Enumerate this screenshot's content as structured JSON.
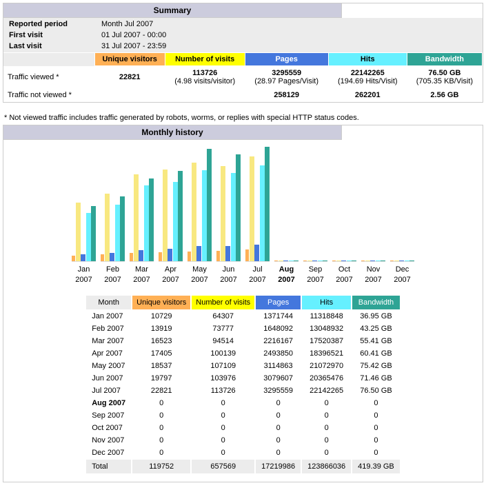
{
  "colors": {
    "unique_visitors": "#ffb055",
    "number_of_visits": "#f8e880",
    "number_of_visits_header": "#ffff00",
    "pages": "#4477dd",
    "hits": "#66f0ff",
    "bandwidth": "#2ea495",
    "header_bg": "#ccccdd",
    "panel_bg": "#ececec"
  },
  "summary": {
    "title": "Summary",
    "reported_period_label": "Reported period",
    "reported_period_value": "Month Jul 2007",
    "first_visit_label": "First visit",
    "first_visit_value": "01 Jul 2007 - 00:00",
    "last_visit_label": "Last visit",
    "last_visit_value": "31 Jul 2007 - 23:59",
    "cols": {
      "unique_visitors": "Unique visitors",
      "number_of_visits": "Number of visits",
      "pages": "Pages",
      "hits": "Hits",
      "bandwidth": "Bandwidth"
    },
    "viewed": {
      "label": "Traffic viewed *",
      "unique_visitors": "22821",
      "number_of_visits": "113726",
      "number_of_visits_sub": "(4.98 visits/visitor)",
      "pages": "3295559",
      "pages_sub": "(28.97 Pages/Visit)",
      "hits": "22142265",
      "hits_sub": "(194.69 Hits/Visit)",
      "bandwidth": "76.50 GB",
      "bandwidth_sub": "(705.35 KB/Visit)"
    },
    "not_viewed": {
      "label": "Traffic not viewed *",
      "pages": "258129",
      "hits": "262201",
      "bandwidth": "2.56 GB"
    },
    "footnote": "* Not viewed traffic includes traffic generated by robots, worms, or replies with special HTTP status codes."
  },
  "monthly": {
    "title": "Monthly history",
    "chart_max_height": 180,
    "months": [
      {
        "label": "Jan",
        "year": "2007",
        "bold": false,
        "uv": 10729,
        "nv": 64307,
        "pages": 1371744,
        "hits": 11318848,
        "bw": "36.95 GB",
        "buv": 8,
        "bnv": 85,
        "bpg": 10,
        "bhi": 70,
        "bbw": 80
      },
      {
        "label": "Feb",
        "year": "2007",
        "bold": false,
        "uv": 13919,
        "nv": 73777,
        "pages": 1648092,
        "hits": 13048932,
        "bw": "43.25 GB",
        "buv": 10,
        "bnv": 98,
        "bpg": 12,
        "bhi": 82,
        "bbw": 94
      },
      {
        "label": "Mar",
        "year": "2007",
        "bold": false,
        "uv": 16523,
        "nv": 94514,
        "pages": 2216167,
        "hits": 17520387,
        "bw": "55.41 GB",
        "buv": 12,
        "bnv": 126,
        "bpg": 16,
        "bhi": 110,
        "bbw": 120
      },
      {
        "label": "Apr",
        "year": "2007",
        "bold": false,
        "uv": 17405,
        "nv": 100139,
        "pages": 2493850,
        "hits": 18396521,
        "bw": "60.41 GB",
        "buv": 13,
        "bnv": 133,
        "bpg": 18,
        "bhi": 115,
        "bbw": 131
      },
      {
        "label": "May",
        "year": "2007",
        "bold": false,
        "uv": 18537,
        "nv": 107109,
        "pages": 3114863,
        "hits": 21072970,
        "bw": "75.42 GB",
        "buv": 14,
        "bnv": 143,
        "bpg": 22,
        "bhi": 132,
        "bbw": 163
      },
      {
        "label": "Jun",
        "year": "2007",
        "bold": false,
        "uv": 19797,
        "nv": 103976,
        "pages": 3079607,
        "hits": 20365476,
        "bw": "71.46 GB",
        "buv": 15,
        "bnv": 138,
        "bpg": 22,
        "bhi": 128,
        "bbw": 155
      },
      {
        "label": "Jul",
        "year": "2007",
        "bold": false,
        "uv": 22821,
        "nv": 113726,
        "pages": 3295559,
        "hits": 22142265,
        "bw": "76.50 GB",
        "buv": 17,
        "bnv": 152,
        "bpg": 24,
        "bhi": 139,
        "bbw": 166
      },
      {
        "label": "Aug",
        "year": "2007",
        "bold": true,
        "uv": 0,
        "nv": 0,
        "pages": 0,
        "hits": 0,
        "bw": "0",
        "buv": 0,
        "bnv": 0,
        "bpg": 0,
        "bhi": 0,
        "bbw": 0
      },
      {
        "label": "Sep",
        "year": "2007",
        "bold": false,
        "uv": 0,
        "nv": 0,
        "pages": 0,
        "hits": 0,
        "bw": "0",
        "buv": 0,
        "bnv": 0,
        "bpg": 0,
        "bhi": 0,
        "bbw": 0
      },
      {
        "label": "Oct",
        "year": "2007",
        "bold": false,
        "uv": 0,
        "nv": 0,
        "pages": 0,
        "hits": 0,
        "bw": "0",
        "buv": 0,
        "bnv": 0,
        "bpg": 0,
        "bhi": 0,
        "bbw": 0
      },
      {
        "label": "Nov",
        "year": "2007",
        "bold": false,
        "uv": 0,
        "nv": 0,
        "pages": 0,
        "hits": 0,
        "bw": "0",
        "buv": 0,
        "bnv": 0,
        "bpg": 0,
        "bhi": 0,
        "bbw": 0
      },
      {
        "label": "Dec",
        "year": "2007",
        "bold": false,
        "uv": 0,
        "nv": 0,
        "pages": 0,
        "hits": 0,
        "bw": "0",
        "buv": 0,
        "bnv": 0,
        "bpg": 0,
        "bhi": 0,
        "bbw": 0
      }
    ],
    "table_cols": {
      "month": "Month",
      "uv": "Unique visitors",
      "nv": "Number of visits",
      "pages": "Pages",
      "hits": "Hits",
      "bw": "Bandwidth"
    },
    "totals": {
      "label": "Total",
      "uv": "119752",
      "nv": "657569",
      "pages": "17219986",
      "hits": "123866036",
      "bw": "419.39 GB"
    },
    "bar_widths": {
      "uv": 5,
      "nv": 7,
      "pg": 7,
      "hi": 7,
      "bw": 7
    }
  }
}
